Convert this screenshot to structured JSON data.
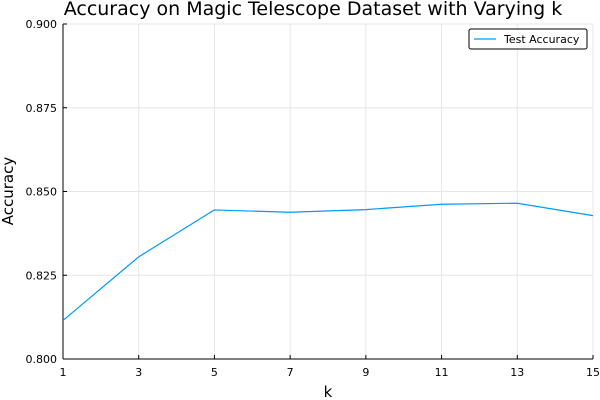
{
  "chart_data": {
    "type": "line",
    "title": "Accuracy on Magic Telescope Dataset with Varying k",
    "xlabel": "k",
    "ylabel": "Accuracy",
    "x": [
      1,
      3,
      5,
      7,
      9,
      11,
      13,
      15
    ],
    "xticks": [
      "1",
      "3",
      "5",
      "7",
      "9",
      "11",
      "13",
      "15"
    ],
    "xlim": [
      1,
      15
    ],
    "ylim": [
      0.8,
      0.9
    ],
    "yticks": [
      0.8,
      0.825,
      0.85,
      0.875,
      0.9
    ],
    "yticklabels": [
      "0.800",
      "0.825",
      "0.850",
      "0.875",
      "0.900"
    ],
    "grid": true,
    "legend": "top-right",
    "series": [
      {
        "name": "Test Accuracy",
        "color": "#009AFA",
        "values": [
          0.8115,
          0.8305,
          0.8445,
          0.8438,
          0.8446,
          0.8462,
          0.8465,
          0.8428
        ]
      }
    ]
  }
}
